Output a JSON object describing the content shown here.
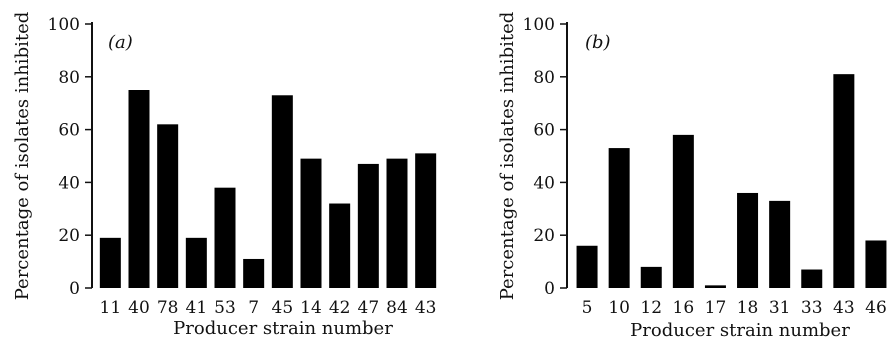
{
  "chart_data": [
    {
      "type": "bar",
      "panel_label": "(a)",
      "xlabel": "Producer strain number",
      "ylabel": "Percentage of isolates inhibited",
      "ylim": [
        0,
        100
      ],
      "yticks": [
        0,
        20,
        40,
        60,
        80,
        100
      ],
      "categories": [
        "11",
        "40",
        "78",
        "41",
        "53",
        "7",
        "45",
        "14",
        "42",
        "47",
        "84",
        "43"
      ],
      "values": [
        19,
        75,
        62,
        19,
        38,
        11,
        73,
        49,
        32,
        47,
        49,
        51
      ],
      "bar_color": "#000000",
      "grid": false
    },
    {
      "type": "bar",
      "panel_label": "(b)",
      "xlabel": "Producer strain number",
      "ylabel": "Percentage of isolates inhibited",
      "ylim": [
        0,
        100
      ],
      "yticks": [
        0,
        20,
        40,
        60,
        80,
        100
      ],
      "categories": [
        "5",
        "10",
        "12",
        "16",
        "17",
        "18",
        "31",
        "33",
        "43",
        "46"
      ],
      "values": [
        16,
        53,
        8,
        58,
        1,
        36,
        33,
        7,
        81,
        18
      ],
      "bar_color": "#000000",
      "grid": false
    }
  ]
}
